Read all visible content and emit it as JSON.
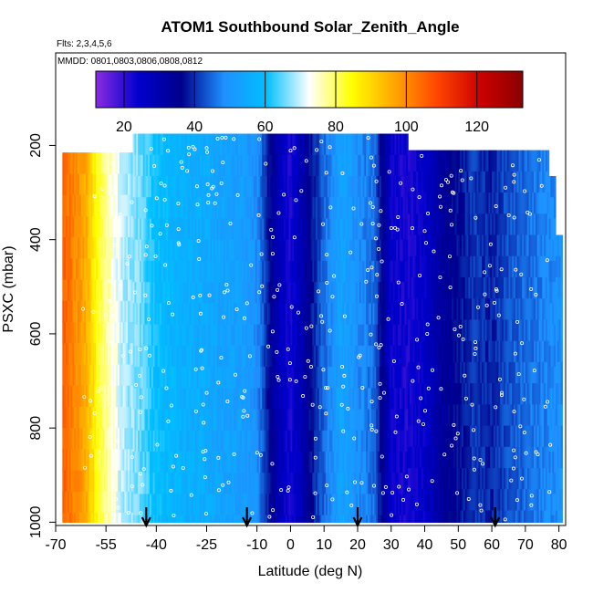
{
  "chart_data": {
    "type": "heatmap",
    "title": "ATOM1 Southbound Solar_Zenith_Angle",
    "flights_label": "Flts: 2,3,4,5,6",
    "dates_label": "MMDD: 0801,0803,0806,0808,0812",
    "xlabel": "Latitude (deg N)",
    "ylabel": "PSXC (mbar)",
    "xlim": [
      -70,
      82
    ],
    "ylim": [
      1000,
      0
    ],
    "x_ticks": [
      "-70",
      "-55",
      "-40",
      "-25",
      "-10",
      "0",
      "10",
      "20",
      "30",
      "40",
      "50",
      "60",
      "70",
      "80"
    ],
    "x_tick_values": [
      -70,
      -55,
      -40,
      -25,
      -10,
      0,
      10,
      20,
      30,
      40,
      50,
      60,
      70,
      80
    ],
    "y_ticks": [
      "200",
      "400",
      "600",
      "800",
      "1000"
    ],
    "y_tick_values": [
      200,
      400,
      600,
      800,
      1000
    ],
    "colorbar": {
      "range": [
        12,
        133
      ],
      "tick_labels": [
        "20",
        "40",
        "60",
        "80",
        "100",
        "120"
      ],
      "tick_values": [
        20,
        40,
        60,
        80,
        100,
        120
      ],
      "colors": [
        "#8a2be2",
        "#0000cd",
        "#00008b",
        "#1e90ff",
        "#00bfff",
        "#ffffff",
        "#ffff00",
        "#ffa500",
        "#ff4500",
        "#cc0000",
        "#8b0000"
      ]
    },
    "profile": {
      "latitude": [
        -68,
        -64,
        -61,
        -59,
        -57,
        -54,
        -50,
        -45,
        -40,
        -35,
        -30,
        -25,
        -20,
        -15,
        -10,
        -6,
        -3,
        0,
        3,
        6,
        10,
        15,
        20,
        25,
        30,
        35,
        40,
        45,
        50,
        55,
        60,
        65,
        70,
        75,
        80
      ],
      "solar_zenith_angle": [
        106,
        100,
        96,
        89,
        82,
        76,
        69,
        66,
        60,
        58,
        56,
        55,
        53,
        52,
        49,
        36,
        27,
        22,
        28,
        37,
        45,
        53,
        49,
        45,
        24,
        22,
        25,
        33,
        37,
        41,
        39,
        43,
        45,
        47,
        49
      ]
    },
    "coverage_top_mbar": [
      {
        "lat_start": -68,
        "lat_end": -47,
        "top": 215
      },
      {
        "lat_start": -47,
        "lat_end": 29,
        "top": 175
      },
      {
        "lat_start": 29,
        "lat_end": 35,
        "top": 175
      },
      {
        "lat_start": 35,
        "lat_end": 77,
        "top": 210
      },
      {
        "lat_start": 77,
        "lat_end": 79,
        "top": 265
      },
      {
        "lat_start": 79,
        "lat_end": 81,
        "top": 390
      }
    ],
    "coverage_bottom_mbar": 1000,
    "arrow_latitudes": [
      -43,
      -13,
      20,
      61
    ],
    "legend_position": "top"
  }
}
